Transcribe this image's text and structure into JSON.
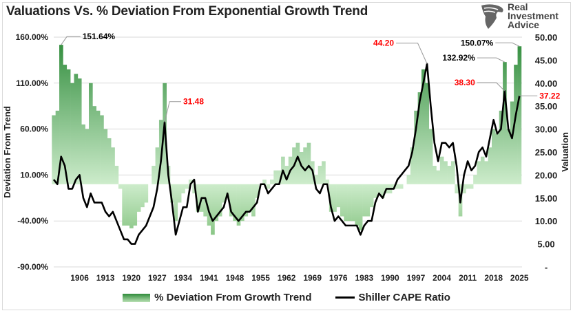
{
  "title": "Valuations Vs. % Deviation From Exponential Growth Trend",
  "logo": {
    "lines": [
      "Real",
      "Investment",
      "Advice"
    ],
    "icon": "eagle-head-icon"
  },
  "chart_data": {
    "type": "area+line",
    "title": "Valuations Vs. % Deviation From Exponential Growth Trend",
    "y_left_label": "Deviation From Trend",
    "y_right_label": "Valuation",
    "y_left_ticks": [
      "160.00%",
      "110.00%",
      "60.00%",
      "10.00%",
      "-40.00%",
      "-90.00%"
    ],
    "y_right_ticks": [
      "50.00",
      "45.00",
      "40.00",
      "35.00",
      "30.00",
      "25.00",
      "20.00",
      "15.00",
      "10.00",
      "5.00",
      "-"
    ],
    "x_ticks": [
      "1906",
      "1913",
      "1920",
      "1927",
      "1934",
      "1941",
      "1948",
      "1955",
      "1962",
      "1969",
      "1976",
      "1983",
      "1990",
      "1997",
      "2004",
      "2011",
      "2018",
      "2025"
    ],
    "y_left_range": [
      -90,
      160
    ],
    "y_right_range": [
      0,
      50
    ],
    "x_range": [
      1899,
      2025.7
    ],
    "grid": "horizontal",
    "legend_position": "bottom",
    "colors": {
      "area_dark": "#2e8b3a",
      "area_light": "#cdeccb",
      "line": "#000000",
      "highlight": "#ff0000"
    },
    "x": [
      1899,
      1900,
      1901,
      1902,
      1903,
      1904,
      1905,
      1906,
      1907,
      1908,
      1909,
      1910,
      1911,
      1912,
      1913,
      1914,
      1915,
      1916,
      1917,
      1918,
      1919,
      1920,
      1921,
      1922,
      1923,
      1924,
      1925,
      1926,
      1927,
      1928,
      1929,
      1930,
      1931,
      1932,
      1933,
      1934,
      1935,
      1936,
      1937,
      1938,
      1939,
      1940,
      1941,
      1942,
      1943,
      1944,
      1945,
      1946,
      1947,
      1948,
      1949,
      1950,
      1951,
      1952,
      1953,
      1954,
      1955,
      1956,
      1957,
      1958,
      1959,
      1960,
      1961,
      1962,
      1963,
      1964,
      1965,
      1966,
      1967,
      1968,
      1969,
      1970,
      1971,
      1972,
      1973,
      1974,
      1975,
      1976,
      1977,
      1978,
      1979,
      1980,
      1981,
      1982,
      1983,
      1984,
      1985,
      1986,
      1987,
      1988,
      1989,
      1990,
      1991,
      1992,
      1993,
      1994,
      1995,
      1996,
      1997,
      1998,
      1999,
      2000,
      2001,
      2002,
      2003,
      2004,
      2005,
      2006,
      2007,
      2008,
      2009,
      2010,
      2011,
      2012,
      2013,
      2014,
      2015,
      2016,
      2017,
      2018,
      2019,
      2020,
      2021,
      2022,
      2023,
      2024,
      2025
    ],
    "series": [
      {
        "name": "% Deviation From Growth Trend",
        "axis": "left",
        "type": "area",
        "values": [
          75,
          80,
          151.64,
          130,
          125,
          110,
          120,
          115,
          65,
          60,
          110,
          85,
          80,
          75,
          60,
          50,
          40,
          20,
          -5,
          -45,
          -45,
          -48,
          -45,
          -30,
          -25,
          -20,
          0,
          20,
          40,
          70,
          110,
          20,
          -20,
          -40,
          -20,
          -10,
          -5,
          5,
          -10,
          -30,
          -30,
          -35,
          -45,
          -55,
          -40,
          -35,
          -20,
          -15,
          -35,
          -40,
          -45,
          -40,
          -35,
          -30,
          -35,
          -15,
          0,
          5,
          -5,
          5,
          15,
          15,
          30,
          20,
          30,
          40,
          45,
          35,
          40,
          45,
          25,
          10,
          20,
          25,
          5,
          -30,
          -30,
          -25,
          -35,
          -40,
          -40,
          -40,
          -45,
          -50,
          -35,
          -35,
          -25,
          -15,
          -10,
          -15,
          -10,
          -10,
          -5,
          -5,
          -5,
          0,
          10,
          40,
          80,
          100,
          125,
          110,
          60,
          20,
          15,
          30,
          25,
          20,
          25,
          -10,
          -35,
          -10,
          -5,
          -5,
          10,
          25,
          30,
          25,
          40,
          60,
          55,
          80,
          132.92,
          60,
          90,
          130,
          150.07
        ]
      },
      {
        "name": "Shiller CAPE Ratio",
        "axis": "right",
        "type": "line",
        "values": [
          19,
          18,
          24,
          22,
          17,
          17,
          19,
          20,
          15,
          13,
          16,
          14,
          14,
          14,
          12,
          11,
          12,
          10,
          8,
          6,
          6,
          5,
          5,
          7,
          8,
          9,
          11,
          13,
          17,
          23,
          31.48,
          20,
          14,
          7,
          10,
          13,
          13,
          18,
          19,
          12,
          15,
          15,
          12,
          10,
          11,
          12,
          13,
          16,
          12,
          11,
          10,
          11,
          12,
          12,
          13,
          14,
          18,
          18,
          16,
          17,
          18,
          18,
          21,
          19,
          21,
          22,
          24,
          22,
          21,
          22,
          21,
          17,
          16,
          18,
          18,
          13,
          10,
          11,
          10,
          9,
          9,
          9,
          9,
          7,
          9,
          10,
          10,
          14,
          16,
          15,
          17,
          17,
          17,
          19,
          20,
          21,
          22,
          25,
          30,
          36,
          40,
          44.2,
          35,
          27,
          23,
          27,
          27,
          26,
          27,
          22,
          14,
          20,
          23,
          21,
          22,
          25,
          26,
          24,
          28,
          32,
          29,
          30,
          38.3,
          30,
          28,
          33,
          37.22
        ]
      }
    ],
    "annotations": [
      {
        "text": "151.64%",
        "series": 0,
        "x": 1901,
        "color": "#000000"
      },
      {
        "text": "31.48",
        "series": 1,
        "x": 1929,
        "color": "#ff0000"
      },
      {
        "text": "44.20",
        "series": 1,
        "x": 2000,
        "color": "#ff0000"
      },
      {
        "text": "132.92%",
        "series": 0,
        "x": 2021,
        "color": "#000000"
      },
      {
        "text": "150.07%",
        "series": 0,
        "x": 2025,
        "color": "#000000"
      },
      {
        "text": "38.30",
        "series": 1,
        "x": 2021,
        "color": "#ff0000"
      },
      {
        "text": "37.22",
        "series": 1,
        "x": 2025,
        "color": "#ff0000"
      }
    ]
  },
  "legend": {
    "area_label": "% Deviation From Growth Trend",
    "line_label": "Shiller CAPE Ratio"
  }
}
